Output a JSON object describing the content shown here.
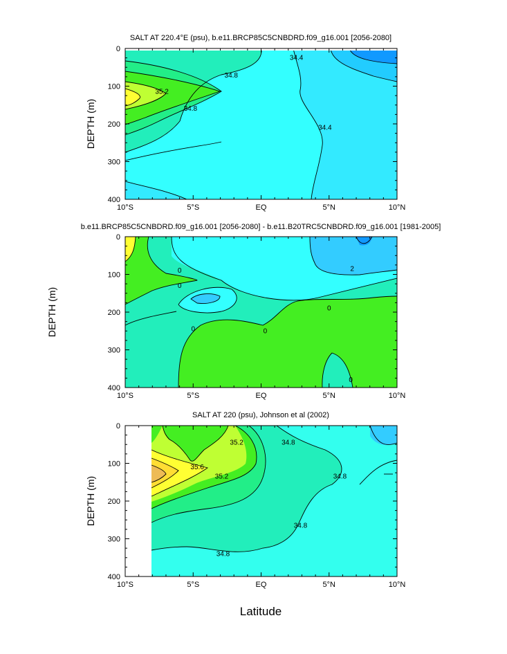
{
  "figure": {
    "xlabel": "Latitude",
    "shared_ylabel": "DEPTH (m)"
  },
  "chart_data": [
    {
      "type": "heatmap",
      "title": "SALT AT 220.4°E (psu), b.e11.BRCP85C5CNBDRD.f09_g16.001 [2056-2080]",
      "ylabel": "DEPTH (m)",
      "xlabel": "",
      "x_ticks": [
        "10°S",
        "5°S",
        "EQ",
        "5°N",
        "10°N"
      ],
      "x_tick_values": [
        -10,
        -5,
        0,
        5,
        10
      ],
      "y_ticks": [
        "0",
        "100",
        "200",
        "300",
        "400"
      ],
      "y_tick_values": [
        0,
        100,
        200,
        300,
        400
      ],
      "xlim": [
        -10,
        10
      ],
      "ylim": [
        0,
        400
      ],
      "y_inverted": true,
      "contour_labels": [
        {
          "text": "34.8",
          "x": -2.2,
          "y": 72
        },
        {
          "text": "35.2",
          "x": -7.3,
          "y": 115
        },
        {
          "text": "34.8",
          "x": -5.2,
          "y": 160
        },
        {
          "text": "34.4",
          "x": 2.6,
          "y": 25
        },
        {
          "text": "34.4",
          "x": 4.7,
          "y": 210
        }
      ],
      "color_fills": [
        "#ffff33",
        "#bfff33",
        "#44ee22",
        "#22ee88",
        "#22eebb",
        "#33f0e0",
        "#33ffff",
        "#33eaff",
        "#22ccff",
        "#1199ff"
      ]
    },
    {
      "type": "heatmap",
      "title": "b.e11.BRCP85C5CNBDRD.f09_g16.001 [2056-2080] - b.e11.B20TRC5CNBDRD.f09_g16.001 [1981-2005]",
      "ylabel": "",
      "xlabel": "",
      "x_ticks": [
        "10°S",
        "5°S",
        "EQ",
        "5°N",
        "10°N"
      ],
      "x_tick_values": [
        -10,
        -5,
        0,
        5,
        10
      ],
      "y_ticks": [
        "0",
        "100",
        "200",
        "300",
        "400"
      ],
      "y_tick_values": [
        0,
        100,
        200,
        300,
        400
      ],
      "xlim": [
        -10,
        10
      ],
      "ylim": [
        0,
        400
      ],
      "y_inverted": true,
      "contour_labels": [
        {
          "text": "0",
          "x": -6.0,
          "y": 90
        },
        {
          "text": "0",
          "x": -6.0,
          "y": 130
        },
        {
          "text": "0",
          "x": -5.0,
          "y": 245
        },
        {
          "text": "0",
          "x": 0.3,
          "y": 250
        },
        {
          "text": "0",
          "x": 5.0,
          "y": 190
        },
        {
          "text": "0",
          "x": 6.6,
          "y": 380
        },
        {
          "text": "2",
          "x": 6.7,
          "y": 85
        }
      ],
      "color_fills": [
        "#ffff33",
        "#44ee22",
        "#22eebb",
        "#33ffff",
        "#33ccff",
        "#1199ff"
      ]
    },
    {
      "type": "heatmap",
      "title": "SALT AT 220 (psu), Johnson et al (2002)",
      "ylabel": "DEPTH (m)",
      "xlabel": "Latitude",
      "x_ticks": [
        "10°S",
        "5°S",
        "EQ",
        "5°N",
        "10°N"
      ],
      "x_tick_values": [
        -10,
        -5,
        0,
        5,
        10
      ],
      "y_ticks": [
        "0",
        "100",
        "200",
        "300",
        "400"
      ],
      "y_tick_values": [
        0,
        100,
        200,
        300,
        400
      ],
      "xlim": [
        -10,
        10
      ],
      "ylim": [
        0,
        400
      ],
      "y_inverted": true,
      "contour_labels": [
        {
          "text": "35.2",
          "x": -1.8,
          "y": 45
        },
        {
          "text": "34.8",
          "x": 2.0,
          "y": 45
        },
        {
          "text": "35.6",
          "x": -4.7,
          "y": 110
        },
        {
          "text": "35.2",
          "x": -2.9,
          "y": 135
        },
        {
          "text": "34.8",
          "x": 5.8,
          "y": 135
        },
        {
          "text": "34.8",
          "x": 2.9,
          "y": 265
        },
        {
          "text": "34.8",
          "x": -2.8,
          "y": 340
        }
      ],
      "color_fills": [
        "#eebb55",
        "#ffdd33",
        "#ffff33",
        "#bfff33",
        "#44ee22",
        "#22ee88",
        "#22eebb",
        "#33f0e0",
        "#33ffee",
        "#33ccff"
      ]
    }
  ]
}
